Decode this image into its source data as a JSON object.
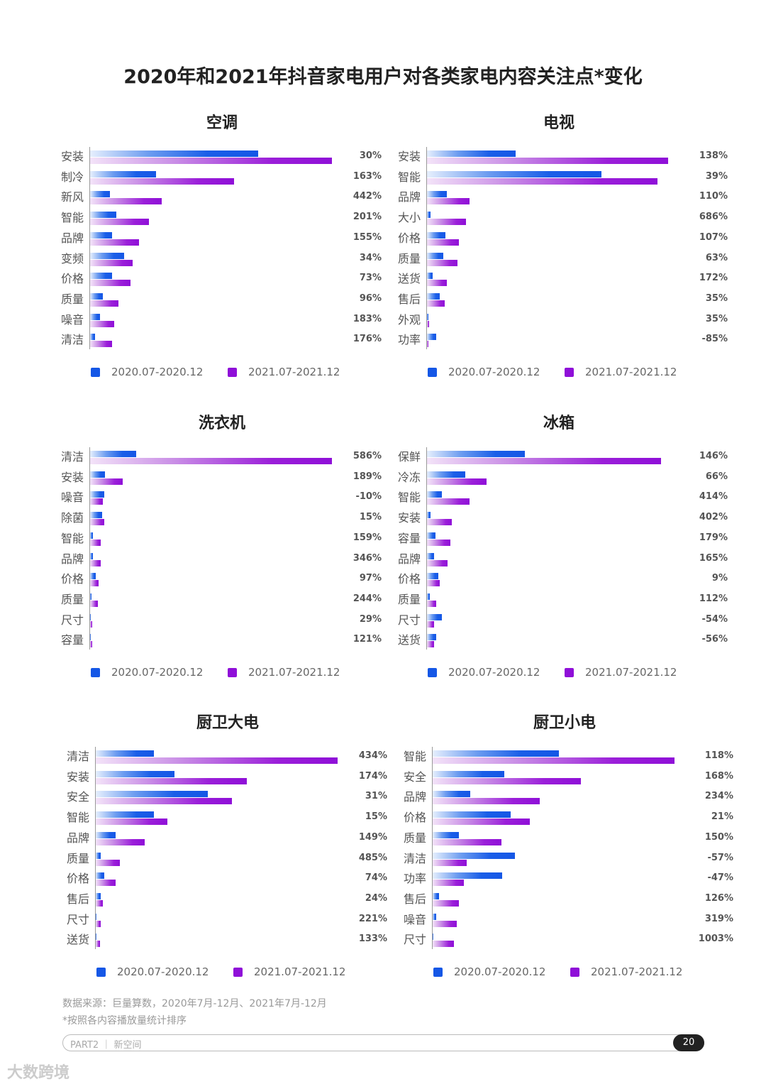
{
  "title": "2020年和2021年抖音家电用户对各类家电内容关注点*变化",
  "legend": {
    "series1": "2020.07-2020.12",
    "series2": "2021.07-2021.12",
    "color1": "#1557e6",
    "color2": "#8f0fd8"
  },
  "footer": {
    "source": "数据来源：巨量算数，2020年7月-12月、2021年7月-12月",
    "note": "*按照各内容播放量统计排序",
    "section": "PART2 ｜  新空间",
    "page": "20",
    "watermark": "大数跨境"
  },
  "chart_data": [
    {
      "type": "bar",
      "title": "空调",
      "categories": [
        "安装",
        "制冷",
        "新风",
        "智能",
        "品牌",
        "变频",
        "价格",
        "质量",
        "噪音",
        "清洁"
      ],
      "series": [
        {
          "name": "2020.07-2020.12",
          "values": [
            237,
            93,
            28,
            37,
            31,
            48,
            31,
            18,
            14,
            7
          ]
        },
        {
          "name": "2021.07-2021.12",
          "values": [
            341,
            203,
            101,
            83,
            69,
            60,
            57,
            40,
            34,
            31
          ]
        }
      ],
      "growth": [
        "30%",
        "163%",
        "442%",
        "201%",
        "155%",
        "34%",
        "73%",
        "96%",
        "183%",
        "176%"
      ]
    },
    {
      "type": "bar",
      "title": "电视",
      "categories": [
        "安装",
        "智能",
        "品牌",
        "大小",
        "价格",
        "质量",
        "送货",
        "售后",
        "外观",
        "功率"
      ],
      "series": [
        {
          "name": "2020.07-2020.12",
          "values": [
            125,
            246,
            28,
            5,
            26,
            23,
            8,
            18,
            2,
            13
          ]
        },
        {
          "name": "2021.07-2021.12",
          "values": [
            340,
            325,
            60,
            55,
            45,
            43,
            28,
            25,
            3,
            2
          ]
        }
      ],
      "growth": [
        "138%",
        "39%",
        "110%",
        "686%",
        "107%",
        "63%",
        "172%",
        "35%",
        "35%",
        "-85%"
      ]
    },
    {
      "type": "bar",
      "title": "洗衣机",
      "categories": [
        "清洁",
        "安装",
        "噪音",
        "除菌",
        "智能",
        "品牌",
        "价格",
        "质量",
        "尺寸",
        "容量"
      ],
      "series": [
        {
          "name": "2020.07-2020.12",
          "values": [
            65,
            21,
            20,
            17,
            4,
            4,
            8,
            2,
            1,
            1
          ]
        },
        {
          "name": "2021.07-2021.12",
          "values": [
            341,
            46,
            18,
            20,
            15,
            15,
            12,
            11,
            3,
            3
          ]
        }
      ],
      "growth": [
        "586%",
        "189%",
        "-10%",
        "15%",
        "159%",
        "346%",
        "97%",
        "244%",
        "29%",
        "121%"
      ]
    },
    {
      "type": "bar",
      "title": "冰箱",
      "categories": [
        "保鲜",
        "冷冻",
        "智能",
        "安装",
        "容量",
        "品牌",
        "价格",
        "质量",
        "尺寸",
        "送货"
      ],
      "series": [
        {
          "name": "2020.07-2020.12",
          "values": [
            138,
            54,
            21,
            5,
            12,
            10,
            16,
            4,
            21,
            13
          ]
        },
        {
          "name": "2021.07-2021.12",
          "values": [
            330,
            84,
            60,
            35,
            33,
            29,
            18,
            13,
            10,
            10
          ]
        }
      ],
      "growth": [
        "146%",
        "66%",
        "414%",
        "402%",
        "179%",
        "165%",
        "9%",
        "112%",
        "-54%",
        "-56%"
      ]
    },
    {
      "type": "bar",
      "title": "厨卫大电",
      "categories": [
        "清洁",
        "安装",
        "安全",
        "智能",
        "品牌",
        "质量",
        "价格",
        "售后",
        "尺寸",
        "送货"
      ],
      "series": [
        {
          "name": "2020.07-2020.12",
          "values": [
            82,
            111,
            158,
            82,
            28,
            7,
            12,
            7,
            1,
            1
          ]
        },
        {
          "name": "2021.07-2021.12",
          "values": [
            341,
            213,
            192,
            101,
            69,
            34,
            28,
            10,
            7,
            6
          ]
        }
      ],
      "growth": [
        "434%",
        "174%",
        "31%",
        "15%",
        "149%",
        "485%",
        "74%",
        "24%",
        "221%",
        "133%"
      ]
    },
    {
      "type": "bar",
      "title": "厨卫小电",
      "categories": [
        "智能",
        "安全",
        "品牌",
        "价格",
        "质量",
        "清洁",
        "功率",
        "售后",
        "噪音",
        "尺寸"
      ],
      "series": [
        {
          "name": "2020.07-2020.12",
          "values": [
            178,
            101,
            53,
            110,
            37,
            116,
            98,
            9,
            5,
            1
          ]
        },
        {
          "name": "2021.07-2021.12",
          "values": [
            341,
            209,
            151,
            137,
            97,
            48,
            44,
            37,
            34,
            30
          ]
        }
      ],
      "growth": [
        "118%",
        "168%",
        "234%",
        "21%",
        "150%",
        "-57%",
        "-47%",
        "126%",
        "319%",
        "1003%"
      ]
    }
  ]
}
